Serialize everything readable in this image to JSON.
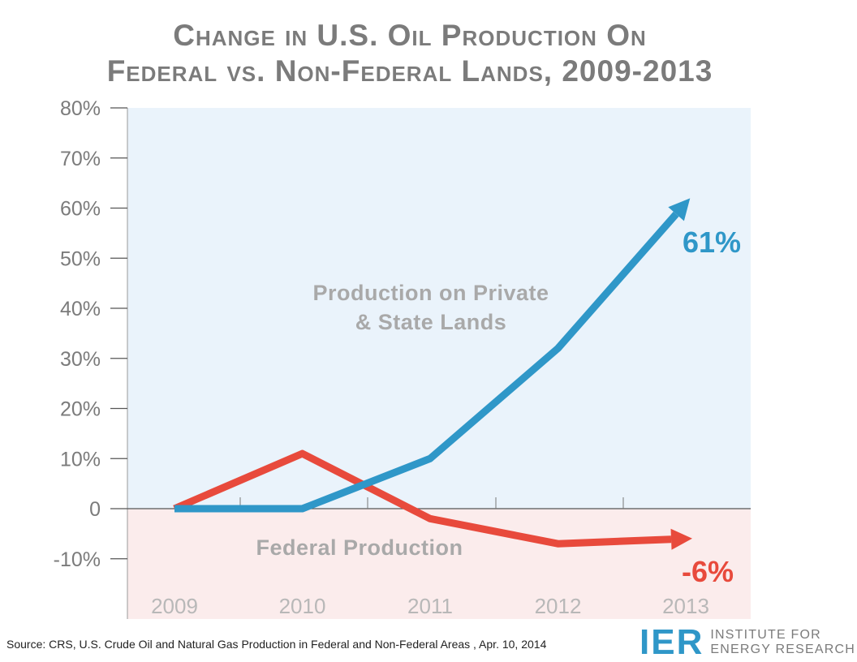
{
  "header": {
    "title_line1": "Change in U.S. Oil Production On",
    "title_line2": "Federal vs. Non-Federal Lands, 2009-2013"
  },
  "footer": {
    "source": "Source: CRS, U.S. Crude Oil and Natural Gas Production in Federal and Non-Federal Areas , Apr. 10, 2014",
    "logo_mark": "IER",
    "logo_name_line1": "INSTITUTE FOR",
    "logo_name_line2": "ENERGY RESEARCH"
  },
  "colors": {
    "private": "#2f97c8",
    "federal": "#e84a3c",
    "positive_region": "#eaf3fb",
    "negative_region": "#fbecec",
    "text_gray": "#7b7b7b",
    "region_label_gray": "#a9a9a9"
  },
  "chart_data": {
    "type": "line",
    "x": [
      "2009",
      "2010",
      "2011",
      "2012",
      "2013"
    ],
    "ylim": [
      -20,
      80
    ],
    "y_ticks": [
      {
        "value": 80,
        "label": "80%"
      },
      {
        "value": 70,
        "label": "70%"
      },
      {
        "value": 60,
        "label": "60%"
      },
      {
        "value": 50,
        "label": "50%"
      },
      {
        "value": 40,
        "label": "40%"
      },
      {
        "value": 30,
        "label": "30%"
      },
      {
        "value": 20,
        "label": "20%"
      },
      {
        "value": 10,
        "label": "10%"
      },
      {
        "value": 0,
        "label": "0"
      },
      {
        "value": -10,
        "label": "-10%"
      }
    ],
    "series": [
      {
        "key": "private",
        "values": [
          0,
          0,
          10,
          32,
          61
        ],
        "end_label": "61%",
        "region_label": [
          "Production on Private",
          "& State Lands"
        ]
      },
      {
        "key": "federal",
        "values": [
          0,
          11,
          -2,
          -7,
          -6
        ],
        "end_label": "-6%",
        "region_label": [
          "Federal Production"
        ]
      }
    ]
  }
}
